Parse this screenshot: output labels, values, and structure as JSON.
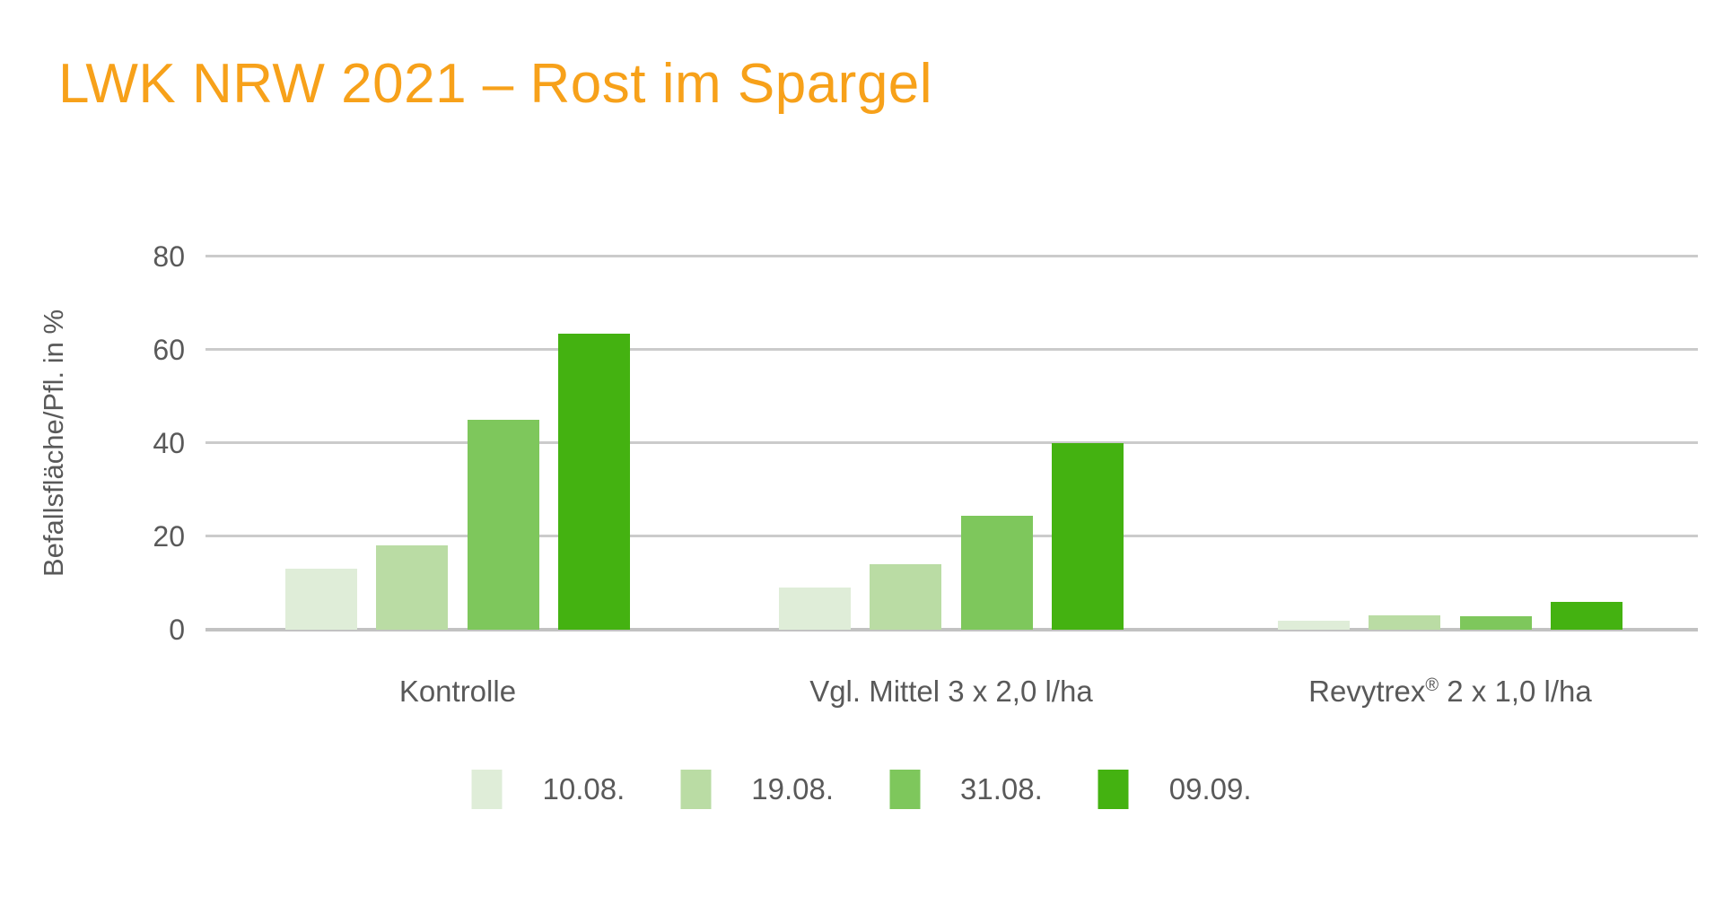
{
  "title": "LWK NRW 2021 – Rost im Spargel",
  "colors": {
    "title_orange": "#F7A11A",
    "axis_text": "#595959",
    "gridline": "#CBCBCB",
    "baseline": "#C2C2C2",
    "background": "#FFFFFF"
  },
  "chart_data": {
    "type": "bar",
    "title": "LWK NRW 2021 – Rost im Spargel",
    "xlabel": "",
    "ylabel": "Befallsfläche/Pfl. in %",
    "ylim": [
      0,
      80
    ],
    "yticks": [
      0,
      20,
      40,
      60,
      80
    ],
    "grid": "horizontal",
    "legend_position": "bottom",
    "categories": [
      "Kontrolle",
      "Vgl. Mittel 3 x 2,0 l/ha",
      "Revytrex® 2 x 1,0 l/ha"
    ],
    "series": [
      {
        "name": "10.08.",
        "color": "#DFEDD8",
        "values": [
          13,
          9,
          2
        ]
      },
      {
        "name": "19.08.",
        "color": "#BADCA4",
        "values": [
          18,
          14,
          3
        ]
      },
      {
        "name": "31.08.",
        "color": "#7EC75C",
        "values": [
          45,
          24.5,
          2.8
        ]
      },
      {
        "name": "09.09.",
        "color": "#44B211",
        "values": [
          63.5,
          40,
          6
        ]
      }
    ]
  }
}
